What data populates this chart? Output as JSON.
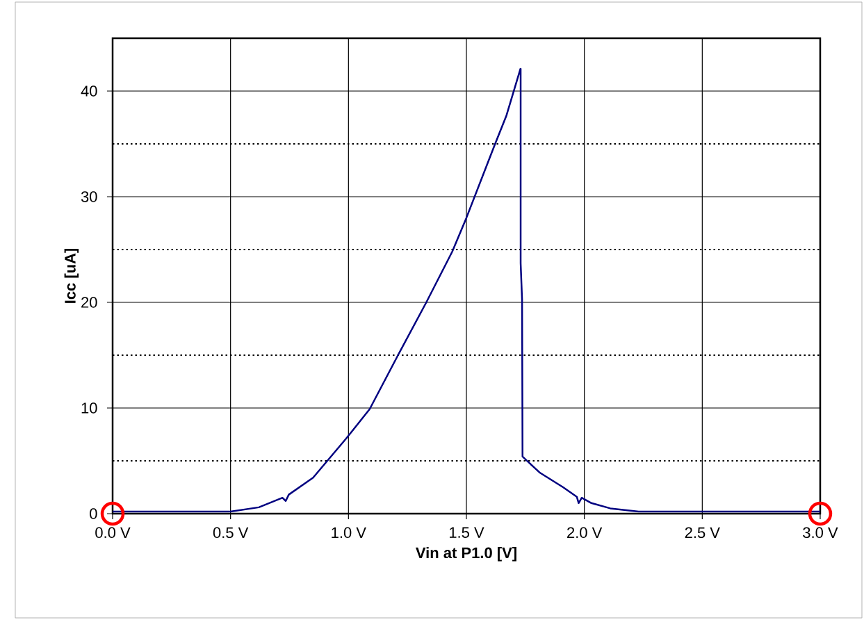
{
  "chart_data": {
    "type": "line",
    "xlabel": "Vin at P1.0 [V]",
    "ylabel": "Icc [uA]",
    "xlim": [
      0,
      3.0
    ],
    "ylim": [
      0,
      45
    ],
    "xticks": [
      {
        "value": 0,
        "label": "0.0 V"
      },
      {
        "value": 0.5,
        "label": "0.5 V"
      },
      {
        "value": 1.0,
        "label": "1.0 V"
      },
      {
        "value": 1.5,
        "label": "1.5 V"
      },
      {
        "value": 2.0,
        "label": "2.0 V"
      },
      {
        "value": 2.5,
        "label": "2.5 V"
      },
      {
        "value": 3.0,
        "label": "3.0 V"
      }
    ],
    "yticks": [
      0,
      10,
      20,
      30,
      40
    ],
    "grid": true,
    "marker": "none",
    "line_style": "solid",
    "series": [
      {
        "color": "#000080",
        "x": [
          0,
          0.5,
          0.62,
          0.72,
          0.734,
          0.747,
          0.85,
          0.99,
          1.09,
          1.21,
          1.33,
          1.44,
          1.5,
          1.62,
          1.67,
          1.729,
          1.73,
          1.73,
          1.736,
          1.738,
          1.81,
          1.91,
          1.968,
          1.976,
          1.989,
          2.03,
          2.11,
          2.23,
          3.0
        ],
        "values": [
          0.2,
          0.2,
          0.6,
          1.5,
          1.2,
          1.8,
          3.4,
          7.1,
          9.9,
          15.0,
          20.0,
          24.8,
          28.0,
          34.9,
          37.7,
          42.1,
          42.1,
          23.7,
          20.3,
          5.4,
          3.9,
          2.5,
          1.6,
          1.0,
          1.5,
          1.0,
          0.5,
          0.2,
          0.2
        ]
      }
    ]
  }
}
